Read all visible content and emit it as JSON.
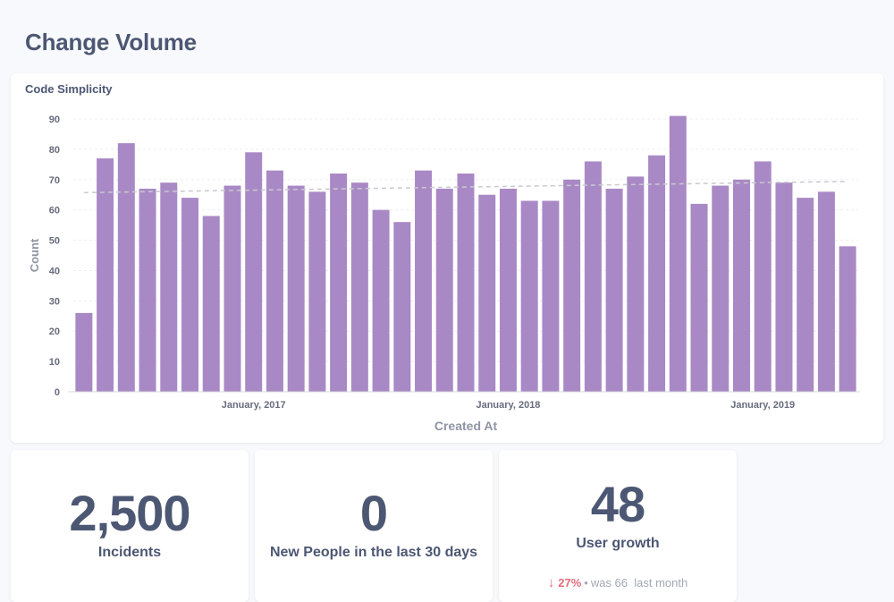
{
  "page": {
    "title": "Change Volume"
  },
  "chart": {
    "title": "Code Simplicity",
    "xlabel": "Created At",
    "ylabel": "Count",
    "yticks": [
      "0",
      "10",
      "20",
      "30",
      "40",
      "50",
      "60",
      "70",
      "80",
      "90"
    ],
    "xticks": [
      {
        "label": "January, 2017",
        "index": 8
      },
      {
        "label": "January, 2018",
        "index": 20
      },
      {
        "label": "January, 2019",
        "index": 32
      }
    ]
  },
  "chart_data": {
    "type": "bar",
    "title": "Code Simplicity",
    "xlabel": "Created At",
    "ylabel": "Count",
    "ylim": [
      0,
      90
    ],
    "grid": true,
    "color": "#a989c5",
    "trend_color": "#c9c9d1",
    "categories": [
      "2016-05",
      "2016-06",
      "2016-07",
      "2016-08",
      "2016-09",
      "2016-10",
      "2016-11",
      "2016-12",
      "2017-01",
      "2017-02",
      "2017-03",
      "2017-04",
      "2017-05",
      "2017-06",
      "2017-07",
      "2017-08",
      "2017-09",
      "2017-10",
      "2017-11",
      "2017-12",
      "2018-01",
      "2018-02",
      "2018-03",
      "2018-04",
      "2018-05",
      "2018-06",
      "2018-07",
      "2018-08",
      "2018-09",
      "2018-10",
      "2018-11",
      "2018-12",
      "2019-01",
      "2019-02",
      "2019-03",
      "2019-04",
      "2019-05"
    ],
    "values": [
      26,
      77,
      82,
      67,
      69,
      64,
      58,
      68,
      79,
      73,
      68,
      66,
      72,
      69,
      60,
      56,
      73,
      67,
      72,
      65,
      67,
      63,
      63,
      70,
      76,
      67,
      71,
      78,
      91,
      62,
      68,
      70,
      76,
      69,
      64,
      66,
      48
    ],
    "trend": {
      "start": 65.7,
      "end": 69.4
    }
  },
  "scalars": [
    {
      "value": "2,500",
      "label": "Incidents"
    },
    {
      "value": "0",
      "label": "New People in the last 30 days"
    },
    {
      "value": "48",
      "label": "User growth",
      "change": {
        "arrow": "↓",
        "percent": "27%",
        "dot": "•",
        "previous": "was 66",
        "period": "last month"
      }
    }
  ]
}
